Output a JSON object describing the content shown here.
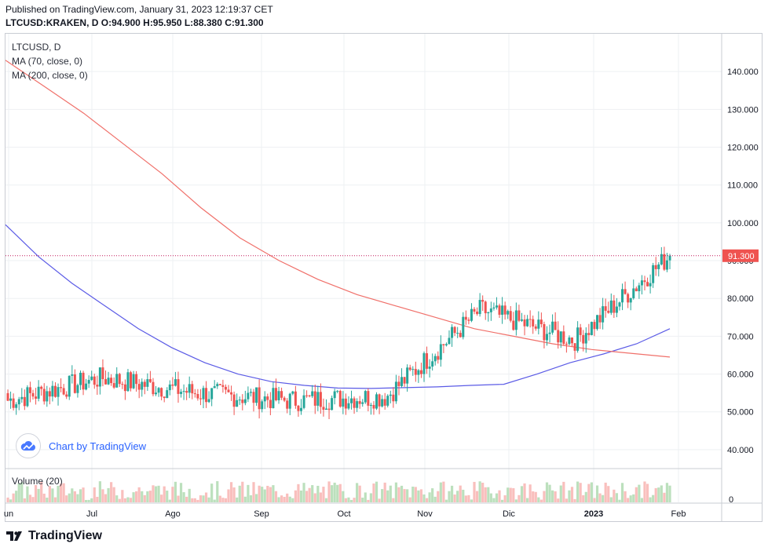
{
  "header": {
    "published": "Published on TradingView.com, January 31, 2023 12:19:37 CET",
    "symbol": "LTCUSD:KRAKEN, D",
    "ohlc": "O:94.900 H:95.950 L:88.380 C:91.300"
  },
  "legend": {
    "symbol": "LTCUSD, D",
    "ma70": "MA (70, close, 0)",
    "ma200": "MA (200, close, 0)"
  },
  "volume_label": "Volume (20)",
  "attribution": "Chart by TradingView",
  "footer_logo": "TradingView",
  "colors": {
    "up": "#26a69a",
    "down": "#ef5350",
    "ma70": "#5b5be6",
    "ma200": "#f0706a",
    "price_line": "#c2185b",
    "grid": "#eef0f3"
  },
  "chart_data": {
    "type": "candlestick",
    "y_axis": {
      "ticks": [
        40,
        50,
        60,
        70,
        80,
        90,
        100,
        110,
        120,
        130,
        140
      ],
      "tick_labels": [
        "40.000",
        "50.000",
        "60.000",
        "70.000",
        "80.000",
        "90.000",
        "100.000",
        "110.000",
        "120.000",
        "130.000",
        "140.000"
      ],
      "range": [
        35,
        150
      ]
    },
    "volume_axis": {
      "tick_label": "0"
    },
    "x_axis": {
      "labels": [
        "un",
        "Jul",
        "Ago",
        "Sep",
        "Oct",
        "Nov",
        "Dic",
        "2023",
        "Feb"
      ]
    },
    "last_price": {
      "value": 91.3,
      "label": "91.300"
    },
    "ohlc_monthly_closes": [
      {
        "period": "Jun",
        "close": 53
      },
      {
        "period": "Jul",
        "close": 59
      },
      {
        "period": "Ago",
        "close": 55
      },
      {
        "period": "Sep",
        "close": 53
      },
      {
        "period": "Oct",
        "close": 54
      },
      {
        "period": "Nov",
        "close": 77
      },
      {
        "period": "Dic",
        "close": 69
      },
      {
        "period": "2023",
        "close": 91.3
      }
    ],
    "series": [
      {
        "name": "MA (70, close, 0)",
        "values": [
          99.5,
          91,
          84,
          78,
          72,
          67,
          63,
          60,
          58,
          57,
          56.3,
          56.2,
          56.4,
          56.6,
          57,
          57.3,
          60,
          63,
          65.3,
          68,
          72
        ]
      },
      {
        "name": "MA (200, close, 0)",
        "values": [
          143,
          136,
          129,
          121,
          113,
          104,
          96,
          90,
          85,
          81,
          78,
          75,
          72,
          70,
          68,
          66.5,
          65.5,
          64.5
        ]
      }
    ],
    "grid": true,
    "legend_position": "top-left"
  }
}
